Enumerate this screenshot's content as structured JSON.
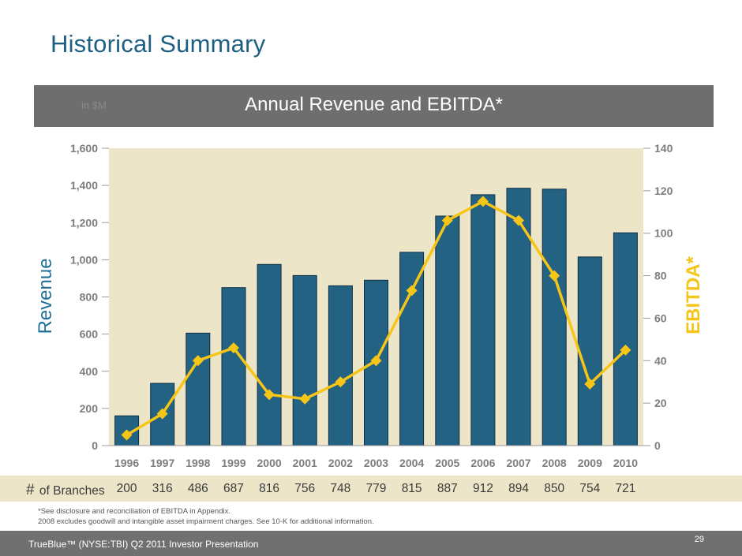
{
  "slide": {
    "title": "Historical Summary",
    "banner_unit": "in $M",
    "footnote_1": "*See disclosure and reconciliation of EBITDA in Appendix.",
    "footnote_2": "2008 excludes goodwill and intangible asset impairment charges.  See 10-K for additional information.",
    "footer_text": "TrueBlue™ (NYSE:TBI) Q2 2011 Investor Presentation",
    "page_number": "29"
  },
  "branches": {
    "label_hash": "#",
    "label_text": "of Branches",
    "values": [
      "200",
      "316",
      "486",
      "687",
      "816",
      "756",
      "748",
      "779",
      "815",
      "887",
      "912",
      "894",
      "850",
      "754",
      "721"
    ]
  },
  "chart_data": {
    "type": "bar",
    "title": "Annual Revenue and EBITDA*",
    "categories": [
      "1996",
      "1997",
      "1998",
      "1999",
      "2000",
      "2001",
      "2002",
      "2003",
      "2004",
      "2005",
      "2006",
      "2007",
      "2008",
      "2009",
      "2010"
    ],
    "series": [
      {
        "name": "Revenue",
        "type": "bar",
        "axis": "left",
        "color": "#236283",
        "values": [
          160,
          335,
          605,
          850,
          975,
          915,
          860,
          890,
          1040,
          1235,
          1350,
          1385,
          1380,
          1015,
          1145
        ]
      },
      {
        "name": "EBITDA*",
        "type": "line",
        "axis": "right",
        "color": "#f5c518",
        "values": [
          5,
          15,
          40,
          46,
          24,
          22,
          30,
          40,
          73,
          106,
          115,
          106,
          80,
          29,
          45
        ]
      }
    ],
    "ylabel": "Revenue",
    "y2label": "EBITDA*",
    "ylim": [
      0,
      1600
    ],
    "y2lim": [
      0,
      140
    ],
    "yticks": [
      "0",
      "200",
      "400",
      "600",
      "800",
      "1,000",
      "1,200",
      "1,400",
      "1,600"
    ],
    "y2ticks": [
      "0",
      "20",
      "40",
      "60",
      "80",
      "100",
      "120",
      "140"
    ],
    "plot_background": "#ede5c8",
    "grid": false
  }
}
